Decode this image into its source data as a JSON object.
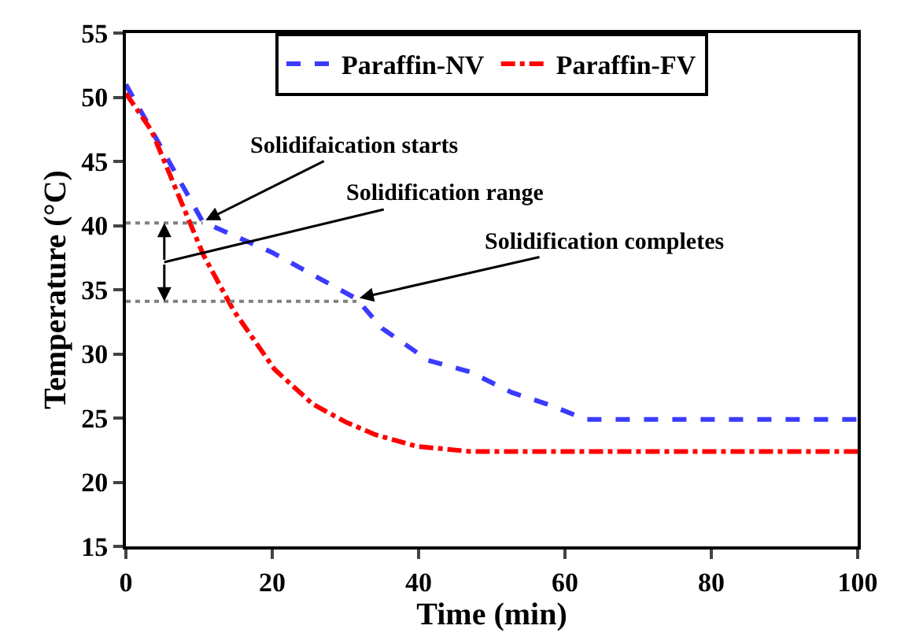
{
  "chart_data": {
    "type": "line",
    "xlabel": "Time (min)",
    "ylabel": "Temperature (°C)",
    "xlim": [
      0,
      100
    ],
    "xticks": [
      0,
      20,
      40,
      60,
      80,
      100
    ],
    "ylim": [
      15,
      55
    ],
    "yticks": [
      15,
      20,
      25,
      30,
      35,
      40,
      45,
      50,
      55
    ],
    "grid": false,
    "legend": "top",
    "marker": "none",
    "series": [
      {
        "name": "Paraffin-NV",
        "color": "#3b3bff",
        "line_style": "dashed",
        "x": [
          0,
          10.5,
          20,
          31.5,
          35,
          41.3,
          47,
          52.7,
          58,
          62.8,
          70,
          80,
          90,
          100
        ],
        "values": [
          51,
          40.3,
          37.9,
          34.3,
          32,
          29.5,
          28.6,
          27,
          26,
          24.9,
          24.9,
          24.9,
          24.9,
          24.9
        ]
      },
      {
        "name": "Paraffin-FV",
        "color": "#ff0000",
        "line_style": "dashdot",
        "x": [
          0,
          3.5,
          7.3,
          10.6,
          14.7,
          20.3,
          25.5,
          30,
          34.1,
          39.7,
          47,
          60,
          80,
          100
        ],
        "values": [
          50.3,
          47.4,
          42.2,
          37.7,
          33.4,
          28.8,
          26.1,
          24.7,
          23.7,
          22.8,
          22.4,
          22.4,
          22.4,
          22.4
        ]
      },
      {
        "type": "line",
        "color": "#808080",
        "line_style": "dotted",
        "x": [
          0,
          10.5
        ],
        "values": [
          40.2,
          40.2
        ]
      },
      {
        "type": "line",
        "color": "#808080",
        "line_style": "dotted",
        "x": [
          0,
          31.5
        ],
        "values": [
          34.1,
          34.1
        ]
      }
    ],
    "annotations": [
      {
        "text": "Solidifaication starts",
        "x": 10.5,
        "y": 40.3
      },
      "Solidification range",
      {
        "text": "Solidification completes",
        "x": 31.5,
        "y": 34.3
      }
    ]
  }
}
